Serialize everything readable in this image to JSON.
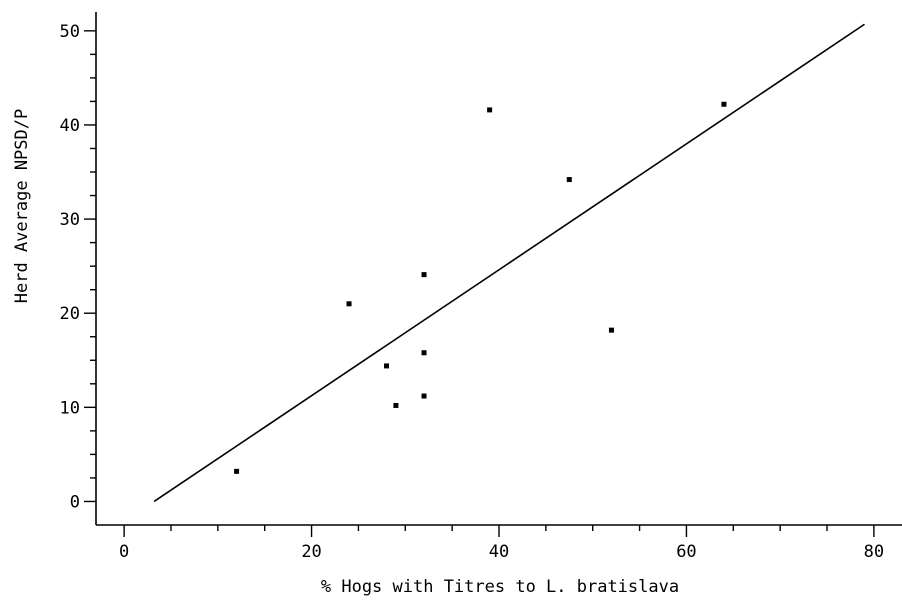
{
  "chart_data": {
    "type": "scatter",
    "title": "",
    "xlabel": "% Hogs with Titres to L. bratislava",
    "ylabel": "Herd Average NPSD/P",
    "xlim": [
      -3,
      83
    ],
    "ylim": [
      -2.5,
      52
    ],
    "x_ticks": [
      0,
      20,
      40,
      60,
      80
    ],
    "y_ticks": [
      0,
      10,
      20,
      30,
      40,
      50
    ],
    "grid": false,
    "legend": "none",
    "points": [
      {
        "x": 12,
        "y": 3.2
      },
      {
        "x": 24,
        "y": 21.0
      },
      {
        "x": 28,
        "y": 14.4
      },
      {
        "x": 29,
        "y": 10.2
      },
      {
        "x": 32,
        "y": 24.1
      },
      {
        "x": 32,
        "y": 15.8
      },
      {
        "x": 32,
        "y": 11.2
      },
      {
        "x": 39,
        "y": 41.6
      },
      {
        "x": 47.5,
        "y": 34.2
      },
      {
        "x": 52,
        "y": 18.2
      },
      {
        "x": 64,
        "y": 42.2
      }
    ],
    "regression_line": {
      "x": [
        3.2,
        79
      ],
      "y": [
        0,
        50.7
      ]
    },
    "colors": {
      "points": "#000000",
      "line": "#000000",
      "axes": "#000000"
    }
  }
}
